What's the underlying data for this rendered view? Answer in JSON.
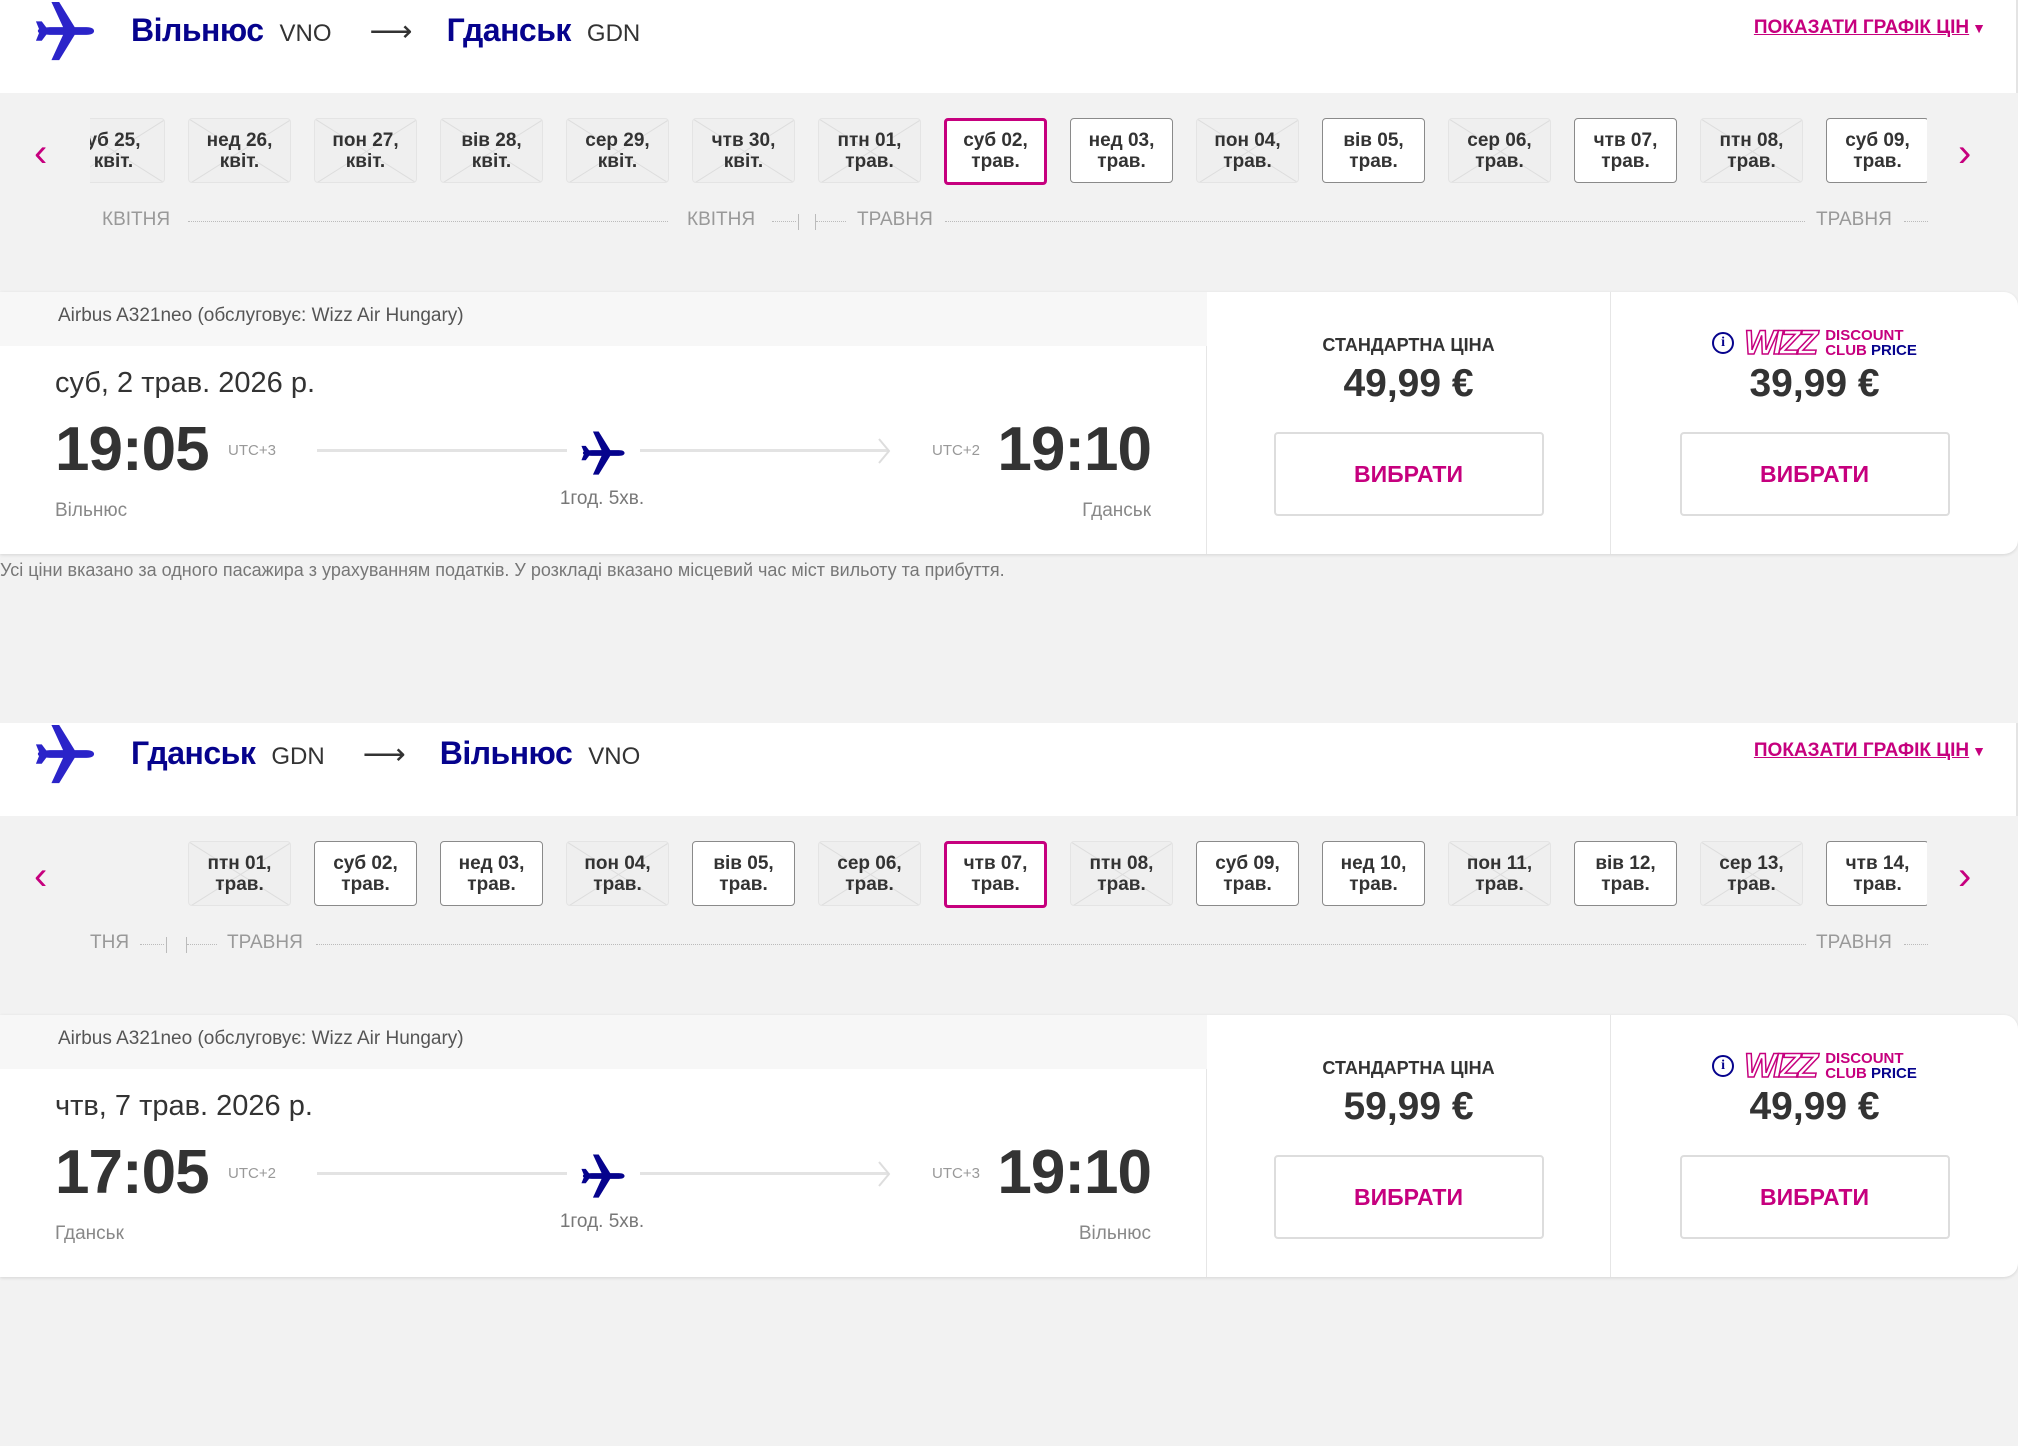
{
  "colors": {
    "accent": "#c6007e",
    "brand_blue": "#06038d"
  },
  "sections": [
    {
      "header": {
        "from_city": "Вільнюс",
        "from_code": "VNO",
        "to_city": "Гданськ",
        "to_code": "GDN",
        "price_chart_link": "ПОКАЗАТИ ГРАФІК ЦІН"
      },
      "dates": [
        {
          "day": "уб 25,",
          "month": "квіт.",
          "state": "disabled"
        },
        {
          "day": "нед 26,",
          "month": "квіт.",
          "state": "disabled"
        },
        {
          "day": "пон 27,",
          "month": "квіт.",
          "state": "disabled"
        },
        {
          "day": "вів 28,",
          "month": "квіт.",
          "state": "disabled"
        },
        {
          "day": "сер 29,",
          "month": "квіт.",
          "state": "disabled"
        },
        {
          "day": "чтв 30,",
          "month": "квіт.",
          "state": "disabled"
        },
        {
          "day": "птн 01,",
          "month": "трав.",
          "state": "disabled"
        },
        {
          "day": "суб 02,",
          "month": "трав.",
          "state": "selected"
        },
        {
          "day": "нед 03,",
          "month": "трав.",
          "state": "available"
        },
        {
          "day": "пон 04,",
          "month": "трав.",
          "state": "disabled"
        },
        {
          "day": "вів 05,",
          "month": "трав.",
          "state": "available"
        },
        {
          "day": "сер 06,",
          "month": "трав.",
          "state": "disabled"
        },
        {
          "day": "чтв 07,",
          "month": "трав.",
          "state": "available"
        },
        {
          "day": "птн 08,",
          "month": "трав.",
          "state": "disabled"
        },
        {
          "day": "суб 09,",
          "month": "трав.",
          "state": "available"
        }
      ],
      "months": [
        "КВІТНЯ",
        "КВІТНЯ",
        "ТРАВНЯ",
        "ТРАВНЯ"
      ],
      "flight": {
        "aircraft": "Airbus A321neo (обслуговує: Wizz Air Hungary)",
        "date": "суб, 2 трав. 2026 р.",
        "dep_time": "19:05",
        "dep_utc": "UTC+3",
        "arr_time": "19:10",
        "arr_utc": "UTC+2",
        "duration": "1год. 5хв.",
        "dep_city": "Вільнюс",
        "arr_city": "Гданськ"
      },
      "prices": {
        "standard_label": "СТАНДАРТНА ЦІНА",
        "standard_price": "49,99 €",
        "club_logo": "WIZZ DISCOUNT CLUB PRICE",
        "club_price": "39,99 €",
        "select_label": "ВИБРАТИ"
      }
    },
    {
      "header": {
        "from_city": "Гданськ",
        "from_code": "GDN",
        "to_city": "Вільнюс",
        "to_code": "VNO",
        "price_chart_link": "ПОКАЗАТИ ГРАФІК ЦІН"
      },
      "dates": [
        {
          "day": "птн 01,",
          "month": "трав.",
          "state": "disabled"
        },
        {
          "day": "суб 02,",
          "month": "трав.",
          "state": "available"
        },
        {
          "day": "нед 03,",
          "month": "трав.",
          "state": "available"
        },
        {
          "day": "пон 04,",
          "month": "трав.",
          "state": "disabled"
        },
        {
          "day": "вів 05,",
          "month": "трав.",
          "state": "available"
        },
        {
          "day": "сер 06,",
          "month": "трав.",
          "state": "disabled"
        },
        {
          "day": "чтв 07,",
          "month": "трав.",
          "state": "selected"
        },
        {
          "day": "птн 08,",
          "month": "трав.",
          "state": "disabled"
        },
        {
          "day": "суб 09,",
          "month": "трав.",
          "state": "available"
        },
        {
          "day": "нед 10,",
          "month": "трав.",
          "state": "available"
        },
        {
          "day": "пон 11,",
          "month": "трав.",
          "state": "disabled"
        },
        {
          "day": "вів 12,",
          "month": "трав.",
          "state": "available"
        },
        {
          "day": "сер 13,",
          "month": "трав.",
          "state": "disabled"
        },
        {
          "day": "чтв 14,",
          "month": "трав.",
          "state": "available"
        }
      ],
      "months": [
        "ТНЯ",
        "ТРАВНЯ",
        "ТРАВНЯ"
      ],
      "flight": {
        "aircraft": "Airbus A321neo (обслуговує: Wizz Air Hungary)",
        "date": "чтв, 7 трав. 2026 р.",
        "dep_time": "17:05",
        "dep_utc": "UTC+2",
        "arr_time": "19:10",
        "arr_utc": "UTC+3",
        "duration": "1год. 5хв.",
        "dep_city": "Гданськ",
        "arr_city": "Вільнюс"
      },
      "prices": {
        "standard_label": "СТАНДАРТНА ЦІНА",
        "standard_price": "59,99 €",
        "club_logo": "WIZZ DISCOUNT CLUB PRICE",
        "club_price": "49,99 €",
        "select_label": "ВИБРАТИ"
      }
    }
  ],
  "footnote": "Усі ціни вказано за одного пасажира з урахуванням податків. У розкладі вказано місцевий час міст вильоту та прибуття."
}
